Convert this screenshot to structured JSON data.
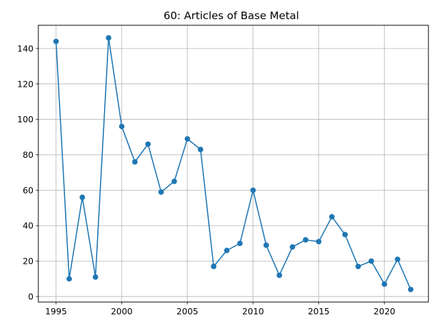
{
  "chart_data": {
    "type": "line",
    "title": "60: Articles of Base Metal",
    "xlabel": "",
    "ylabel": "",
    "x": [
      1995,
      1996,
      1997,
      1998,
      1999,
      2000,
      2001,
      2002,
      2003,
      2004,
      2005,
      2006,
      2007,
      2008,
      2009,
      2010,
      2011,
      2012,
      2013,
      2014,
      2015,
      2016,
      2017,
      2018,
      2019,
      2020,
      2021,
      2022
    ],
    "series": [
      {
        "values": [
          144,
          10,
          56,
          11,
          146,
          96,
          76,
          86,
          59,
          65,
          89,
          83,
          17,
          26,
          30,
          60,
          29,
          12,
          28,
          32,
          31,
          45,
          35,
          17,
          20,
          7,
          21,
          4
        ]
      }
    ],
    "xlim": [
      1993.65,
      2023.35
    ],
    "ylim": [
      -3.1,
      153.1
    ],
    "x_ticks": [
      1995,
      2000,
      2005,
      2010,
      2015,
      2020
    ],
    "y_ticks": [
      0,
      20,
      40,
      60,
      80,
      100,
      120,
      140
    ],
    "grid": true,
    "line_color": "#1f77b4",
    "marker": "circle"
  }
}
